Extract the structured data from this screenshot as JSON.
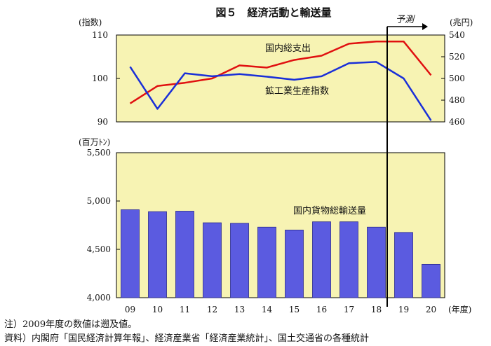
{
  "title": "図５　経済活動と輸送量",
  "notes": [
    "注）2009年度の数値は遡及値。",
    "資料）内閣府「国民経済計算年報」、経済産業省「経済産業統計」、国土交通省の各種統計"
  ],
  "forecast_label": "予測",
  "colors": {
    "plot_bg": "#f7f3b3",
    "gdp_line": "#e01010",
    "index_line": "#1a2fd8",
    "bar_fill": "#5b5be0",
    "bar_stroke": "#2a2a8c",
    "axis": "#000000"
  },
  "chart_data": [
    {
      "type": "line",
      "x_categories": [
        "09",
        "10",
        "11",
        "12",
        "13",
        "14",
        "15",
        "16",
        "17",
        "18",
        "19",
        "20"
      ],
      "left_axis": {
        "unit": "(指数)",
        "ylim": [
          90,
          110
        ],
        "ticks": [
          "90",
          "100",
          "110"
        ]
      },
      "right_axis": {
        "unit": "(兆円)",
        "ylim": [
          460,
          540
        ],
        "ticks": [
          "460",
          "480",
          "500",
          "520",
          "540"
        ]
      },
      "grid": false,
      "series": [
        {
          "name": "国内総支出",
          "axis": "right",
          "color_key": "gdp_line",
          "values": [
            477,
            493,
            496,
            500,
            512,
            510,
            517,
            521,
            532,
            534,
            534,
            503
          ]
        },
        {
          "name": "鉱工業生産指数",
          "axis": "left",
          "color_key": "index_line",
          "values": [
            102.7,
            93.0,
            101.2,
            100.5,
            101.0,
            100.4,
            99.7,
            100.5,
            103.5,
            103.8,
            100.0,
            90.3
          ]
        }
      ]
    },
    {
      "type": "bar",
      "categories": [
        "09",
        "10",
        "11",
        "12",
        "13",
        "14",
        "15",
        "16",
        "17",
        "18",
        "19",
        "20"
      ],
      "xlabel": "(年度)",
      "ylabel": "(百万ﾄﾝ)",
      "ylim": [
        4000,
        5500
      ],
      "ticks": [
        "4,000",
        "4,500",
        "5,000",
        "5,500"
      ],
      "grid": false,
      "series": [
        {
          "name": "国内貨物総輸送量",
          "values": [
            4910,
            4890,
            4895,
            4775,
            4770,
            4730,
            4700,
            4785,
            4785,
            4730,
            4675,
            4345
          ]
        }
      ],
      "forecast_from": "19"
    }
  ]
}
